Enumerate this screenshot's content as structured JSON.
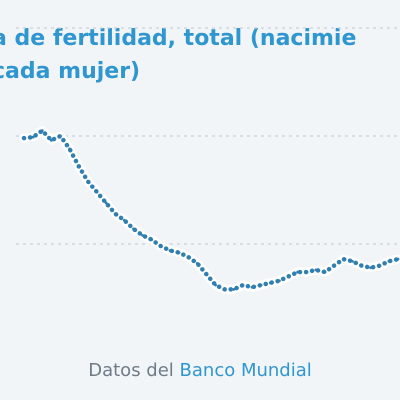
{
  "chart_data": {
    "type": "line",
    "title_lines": [
      "a de fertilidad, total (nacimie",
      "cada mujer)"
    ],
    "x": [
      1,
      2,
      3,
      4,
      5,
      6,
      7,
      8,
      9,
      10,
      11,
      12,
      13,
      14,
      15,
      16,
      17,
      18,
      19,
      20,
      21,
      22,
      23,
      24,
      25,
      26,
      27,
      28,
      29,
      30,
      31,
      32,
      33,
      34,
      35,
      36,
      37,
      38,
      39,
      40,
      41,
      42
    ],
    "values": [
      2.98,
      2.99,
      3.05,
      2.96,
      3.0,
      2.88,
      2.72,
      2.58,
      2.48,
      2.38,
      2.28,
      2.22,
      2.14,
      2.08,
      2.04,
      1.98,
      1.94,
      1.92,
      1.88,
      1.82,
      1.72,
      1.62,
      1.58,
      1.58,
      1.62,
      1.6,
      1.62,
      1.64,
      1.66,
      1.7,
      1.74,
      1.74,
      1.76,
      1.74,
      1.8,
      1.86,
      1.84,
      1.8,
      1.78,
      1.8,
      1.84,
      1.86
    ],
    "ylim": [
      1.0,
      4.0
    ],
    "gridlines": [
      2.0,
      3.0,
      4.0
    ],
    "grid": true,
    "line_color": "#2f7fb0"
  },
  "footer": {
    "source_prefix": "Datos del",
    "source_link": "Banco Mundial"
  }
}
